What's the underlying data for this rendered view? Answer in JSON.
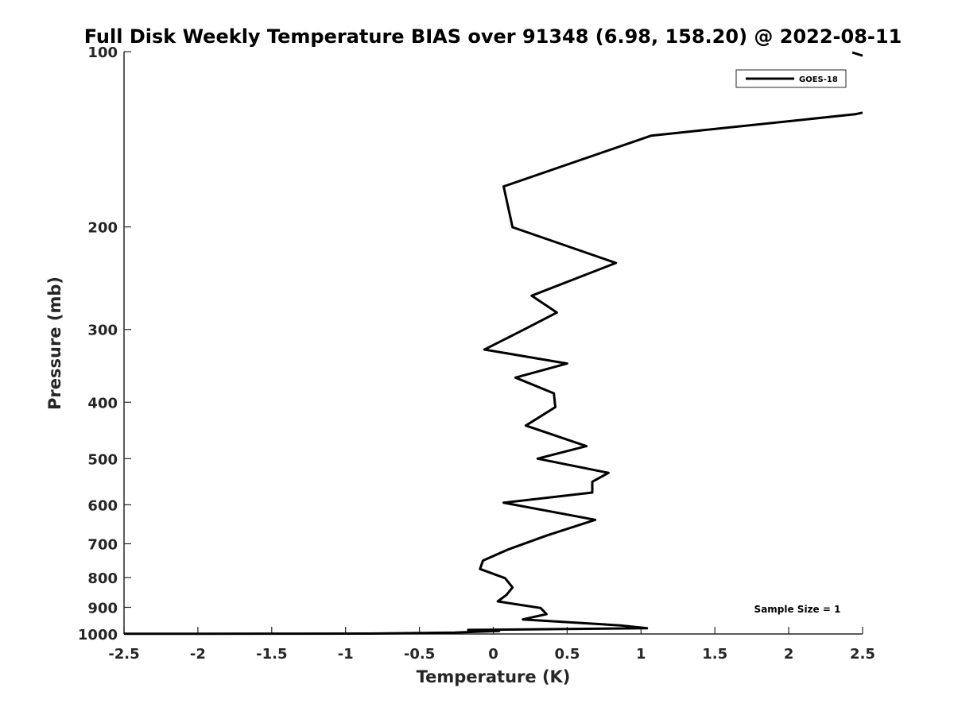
{
  "chart_data": {
    "type": "line",
    "title": "Full Disk Weekly Temperature BIAS over 91348 (6.98, 158.20) @ 2022-08-11",
    "xlabel": "Temperature (K)",
    "ylabel": "Pressure (mb)",
    "xlim": [
      -2.5,
      2.5
    ],
    "ylim": [
      100,
      1000
    ],
    "y_scale": "log",
    "y_reversed": true,
    "x_ticks": [
      -2.5,
      -2,
      -1.5,
      -1,
      -0.5,
      0,
      0.5,
      1,
      1.5,
      2,
      2.5
    ],
    "x_tick_labels": [
      "-2.5",
      "-2",
      "-1.5",
      "-1",
      "-0.5",
      "0",
      "0.5",
      "1",
      "1.5",
      "2",
      "2.5"
    ],
    "y_ticks": [
      100,
      200,
      300,
      400,
      500,
      600,
      700,
      800,
      900,
      1000
    ],
    "y_tick_labels": [
      "100",
      "200",
      "300",
      "400",
      "500",
      "600",
      "700",
      "800",
      "900",
      "1000"
    ],
    "grid": false,
    "legend": {
      "position": "top-right",
      "entries": [
        "GOES-18"
      ]
    },
    "annotation": "Sample Size = 1",
    "series": [
      {
        "name": "GOES-18",
        "color": "#000000",
        "segments": [
          [
            {
              "x": 2.43,
              "p": 100.3
            },
            {
              "x": 2.5,
              "p": 101.6
            }
          ],
          [
            {
              "x": 2.5,
              "p": 127.3
            },
            {
              "x": 2.45,
              "p": 128.1
            },
            {
              "x": 1.07,
              "p": 139.4
            },
            {
              "x": 0.07,
              "p": 170.4
            },
            {
              "x": 0.13,
              "p": 200.2
            },
            {
              "x": 0.83,
              "p": 230.6
            },
            {
              "x": 0.26,
              "p": 262.5
            },
            {
              "x": 0.43,
              "p": 280.6
            },
            {
              "x": 0.23,
              "p": 298.1
            },
            {
              "x": -0.06,
              "p": 324.8
            },
            {
              "x": 0.5,
              "p": 343.2
            },
            {
              "x": 0.15,
              "p": 362.9
            },
            {
              "x": 0.41,
              "p": 386.2
            },
            {
              "x": 0.42,
              "p": 407.8
            },
            {
              "x": 0.22,
              "p": 438.7
            },
            {
              "x": 0.63,
              "p": 475.8
            },
            {
              "x": 0.3,
              "p": 500.0
            },
            {
              "x": 0.78,
              "p": 528.8
            },
            {
              "x": 0.67,
              "p": 547.7
            },
            {
              "x": 0.67,
              "p": 571.7
            },
            {
              "x": 0.07,
              "p": 595.1
            },
            {
              "x": 0.69,
              "p": 636.7
            },
            {
              "x": 0.36,
              "p": 677.7
            },
            {
              "x": 0.1,
              "p": 716.1
            },
            {
              "x": -0.07,
              "p": 748.1
            },
            {
              "x": -0.09,
              "p": 773.3
            },
            {
              "x": 0.08,
              "p": 802.0
            },
            {
              "x": 0.13,
              "p": 831.8
            },
            {
              "x": 0.09,
              "p": 856.6
            },
            {
              "x": 0.03,
              "p": 879.2
            },
            {
              "x": 0.32,
              "p": 902.4
            },
            {
              "x": 0.36,
              "p": 924.5
            },
            {
              "x": 0.2,
              "p": 944.2
            },
            {
              "x": 0.86,
              "p": 966.5
            },
            {
              "x": 1.04,
              "p": 977.5
            },
            {
              "x": -0.17,
              "p": 984.0
            },
            {
              "x": 0.04,
              "p": 988.0
            },
            {
              "x": -0.14,
              "p": 992.0
            },
            {
              "x": -0.26,
              "p": 994.8
            },
            {
              "x": -0.83,
              "p": 998.3
            },
            {
              "x": -1.5,
              "p": 998.8
            },
            {
              "x": -2.5,
              "p": 999.5
            }
          ]
        ]
      }
    ]
  }
}
